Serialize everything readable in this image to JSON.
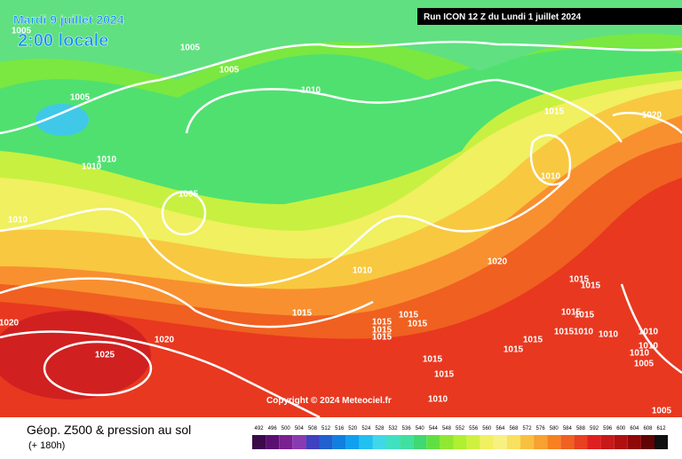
{
  "header": {
    "date": "Mardi 9 juillet 2024",
    "time": "2:00 locale",
    "run": "Run ICON 12 Z du Lundi 1 juillet 2024"
  },
  "copyright": "Copyright © 2024 Meteociel.fr",
  "footer": {
    "title": "Géop. Z500 & pression au sol",
    "lead": "(+ 180h)"
  },
  "isobar_labels": [
    "1005",
    "1005",
    "1005",
    "1010",
    "1005",
    "1010",
    "1010",
    "1005",
    "1010",
    "1015",
    "1020",
    "1010",
    "1010",
    "1020",
    "1015",
    "1020",
    "1020",
    "1025",
    "1015",
    "1015",
    "1015",
    "1015",
    "1015",
    "1015",
    "1015",
    "1015",
    "1015",
    "1015",
    "1015",
    "1015",
    "1015",
    "1010",
    "1015",
    "1010",
    "1010",
    "1010",
    "1010",
    "1010",
    "1005",
    "1005"
  ],
  "colorbar": {
    "ticks": [
      492,
      496,
      500,
      504,
      508,
      512,
      516,
      520,
      524,
      528,
      532,
      536,
      540,
      544,
      548,
      552,
      556,
      560,
      564,
      568,
      572,
      576,
      580,
      584,
      588,
      592,
      596,
      600,
      604,
      608,
      612
    ],
    "colors": [
      "#3b0a4a",
      "#5a1070",
      "#7a2090",
      "#8a3ab0",
      "#4040c0",
      "#2060d0",
      "#1080e0",
      "#10a0f0",
      "#20c0f0",
      "#40d8e8",
      "#40e0c0",
      "#40e0a0",
      "#40d870",
      "#60e040",
      "#90e830",
      "#b0f030",
      "#d0f040",
      "#f0f060",
      "#f8f080",
      "#f8e060",
      "#f8c040",
      "#f8a030",
      "#f88020",
      "#f06020",
      "#e84020",
      "#e02020",
      "#c81818",
      "#b01010",
      "#900808",
      "#600404",
      "#101010"
    ]
  }
}
